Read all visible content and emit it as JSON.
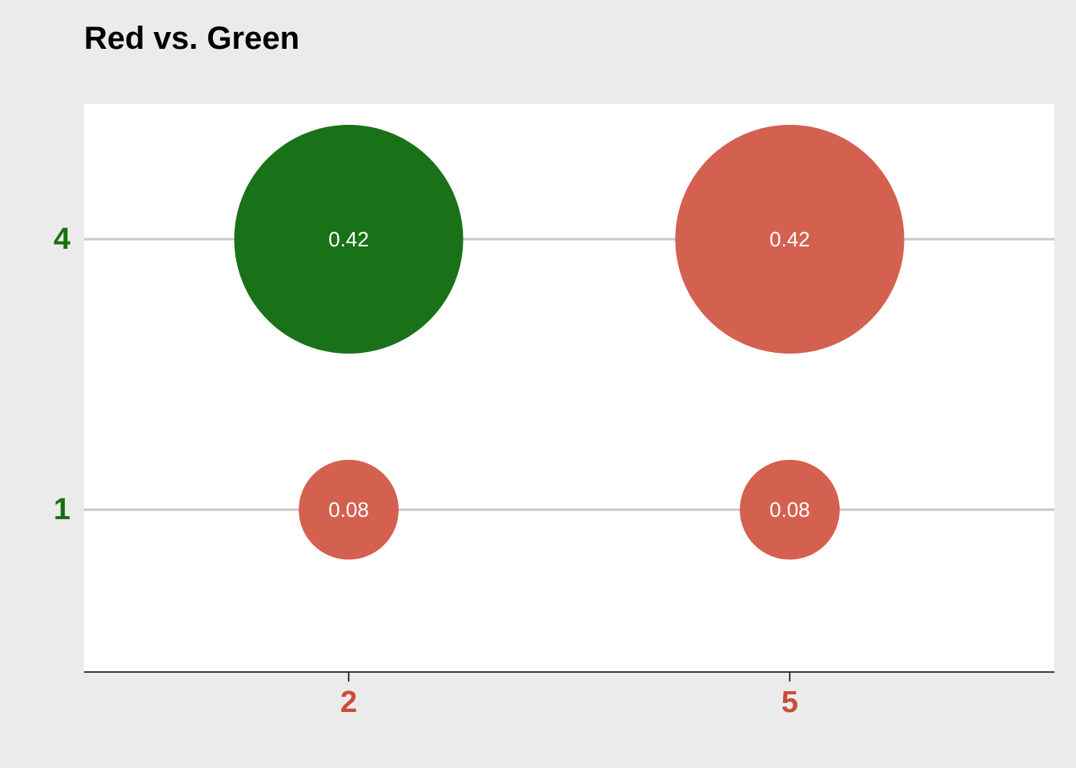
{
  "chart_data": {
    "type": "scatter",
    "title": "Red vs. Green",
    "xlabel": "",
    "ylabel": "",
    "x_ticks": [
      2,
      5
    ],
    "y_ticks": [
      1,
      4
    ],
    "xlim": [
      0.2,
      6.8
    ],
    "ylim": [
      -0.8,
      5.5
    ],
    "grid": "horizontal major",
    "points": [
      {
        "x": 2,
        "y": 4,
        "value": 0.42,
        "label": "0.42",
        "color": "#1a7218"
      },
      {
        "x": 5,
        "y": 4,
        "value": 0.42,
        "label": "0.42",
        "color": "#d4604f"
      },
      {
        "x": 2,
        "y": 1,
        "value": 0.08,
        "label": "0.08",
        "color": "#d4604f"
      },
      {
        "x": 5,
        "y": 1,
        "value": 0.08,
        "label": "0.08",
        "color": "#d4604f"
      }
    ],
    "colors": {
      "x_tick": "#cc4b3b",
      "y_tick": "#1a6e0f",
      "grid": "#c8c8c8",
      "panel": "#ffffff",
      "background": "#ebebeb"
    }
  }
}
